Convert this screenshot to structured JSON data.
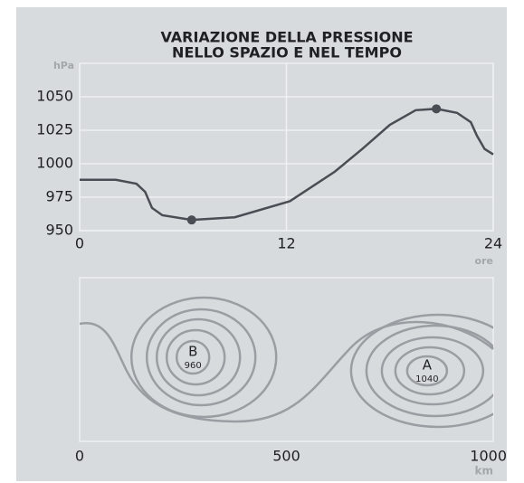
{
  "chart_data": [
    {
      "type": "line",
      "title": [
        "VARIAZIONE DELLA PRESSIONE",
        "NELLO SPAZIO E NEL TEMPO"
      ],
      "ylabel": "hPa",
      "xlabel": "ore",
      "x": [
        0,
        2.1,
        3.3,
        3.8,
        4.2,
        4.8,
        6.5,
        9,
        12.2,
        14.8,
        16.4,
        18,
        19.5,
        20.7,
        21.9,
        22.7,
        23.05,
        23.5,
        24
      ],
      "series": [
        {
          "color": "#4a4e54",
          "values": [
            988,
            988,
            985,
            979,
            967,
            961.5,
            958,
            960,
            972,
            994,
            1011,
            1029,
            1040,
            1041,
            1038,
            1031,
            1021,
            1011,
            1007
          ]
        }
      ],
      "markers": {
        "x": [
          6.5,
          20.7
        ],
        "values": [
          958,
          1041
        ]
      },
      "xlim": [
        0,
        24
      ],
      "xticks": [
        0,
        12,
        24
      ],
      "ylim": [
        950,
        1075
      ],
      "yticks": [
        950,
        975,
        1000,
        1025,
        1050
      ],
      "grid": true
    },
    {
      "type": "map",
      "xlabel": "km",
      "xlim": [
        0,
        1000
      ],
      "xticks": [
        0,
        500,
        1000
      ],
      "centers": [
        {
          "label": "B",
          "value": 960,
          "x": 274
        },
        {
          "label": "A",
          "value": 1040,
          "x": 840
        }
      ]
    }
  ]
}
